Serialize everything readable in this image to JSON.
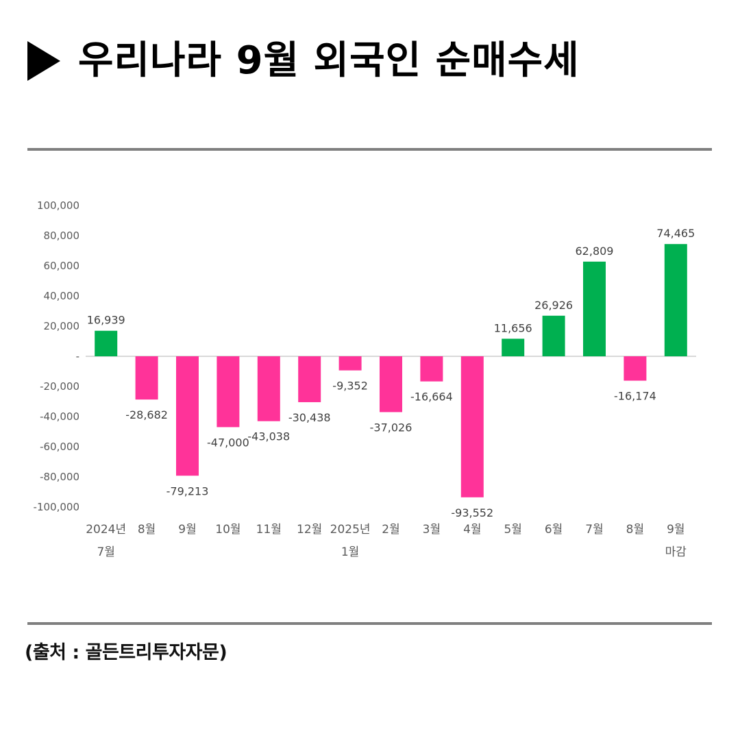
{
  "title": "우리나라 9월 외국인 순매수세",
  "source": "(출처 : 골든트리투자자문)",
  "colors": {
    "positive": "#00b050",
    "negative": "#ff3399",
    "axis_text": "#595959",
    "rule": "#7f7f7f"
  },
  "chart_data": {
    "type": "bar",
    "title": "",
    "xlabel": "",
    "ylabel": "",
    "ylim": [
      -100000,
      100000
    ],
    "grid": false,
    "y_ticks": [
      "100,000",
      "80,000",
      "60,000",
      "40,000",
      "20,000",
      "-",
      "-20,000",
      "-40,000",
      "-60,000",
      "-80,000",
      "-100,000"
    ],
    "categories": [
      [
        "2024년",
        "7월"
      ],
      [
        "8월"
      ],
      [
        "9월"
      ],
      [
        "10월"
      ],
      [
        "11월"
      ],
      [
        "12월"
      ],
      [
        "2025년",
        "1월"
      ],
      [
        "2월"
      ],
      [
        "3월"
      ],
      [
        "4월"
      ],
      [
        "5월"
      ],
      [
        "6월"
      ],
      [
        "7월"
      ],
      [
        "8월"
      ],
      [
        "9월",
        "마감"
      ]
    ],
    "values": [
      16939,
      -28682,
      -79213,
      -47000,
      -43038,
      -30438,
      -9352,
      -37026,
      -16664,
      -93552,
      11656,
      26926,
      62809,
      -16174,
      74465
    ],
    "value_labels": [
      "16,939",
      "-28,682",
      "-79,213",
      "-47,000",
      "-43,038",
      "-30,438",
      "-9,352",
      "-37,026",
      "-16,664",
      "-93,552",
      "11,656",
      "26,926",
      "62,809",
      "-16,174",
      "74,465"
    ]
  }
}
